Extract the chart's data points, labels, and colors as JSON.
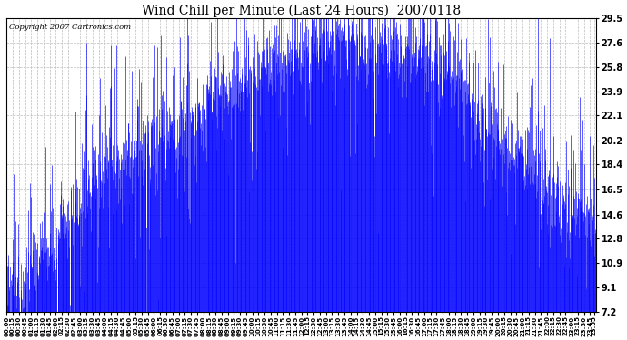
{
  "title": "Wind Chill per Minute (Last 24 Hours)  20070118",
  "copyright": "Copyright 2007 Cartronics.com",
  "yticks": [
    7.2,
    9.1,
    10.9,
    12.8,
    14.6,
    16.5,
    18.4,
    20.2,
    22.1,
    23.9,
    25.8,
    27.6,
    29.5
  ],
  "ymin": 7.2,
  "ymax": 29.5,
  "bar_color": "#0000FF",
  "bg_color": "#FFFFFF",
  "grid_color": "#BBBBBB",
  "title_fontsize": 10,
  "tick_fontsize": 7,
  "copyright_fontsize": 6
}
